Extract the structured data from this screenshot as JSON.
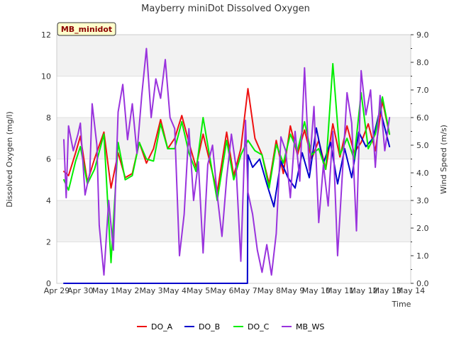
{
  "chart_data": {
    "type": "line",
    "title": "Mayberry miniDot Dissolved Oxygen",
    "xlabel": "Time",
    "ylabel": "Dissolved Oxygen (mg/l)",
    "y2label": "Wind Speed (m/s)",
    "station_badge": "MB_minidot",
    "xlim": [
      0,
      15
    ],
    "ylim": [
      0,
      12
    ],
    "y2lim": [
      0,
      9
    ],
    "x_tick_values": [
      0,
      1,
      2,
      3,
      4,
      5,
      6,
      7,
      8,
      9,
      10,
      11,
      12,
      13,
      14,
      15
    ],
    "x_tick_labels": [
      "Apr 29",
      "Apr 30",
      "May 1",
      "May 2",
      "May 3",
      "May 4",
      "May 5",
      "May 6",
      "May 7",
      "May 8",
      "May 9",
      "May 10",
      "May 11",
      "May 12",
      "May 13",
      "May 14"
    ],
    "y_ticks": [
      "0",
      "2",
      "4",
      "6",
      "8",
      "10",
      "12"
    ],
    "y2_ticks": [
      "0.0",
      "1.0",
      "2.0",
      "3.0",
      "4.0",
      "5.0",
      "6.0",
      "7.0",
      "8.0",
      "9.0"
    ],
    "grid": "horizontal bands",
    "legend_position": "bottom",
    "series": [
      {
        "name": "DO_A",
        "axis": "left",
        "color": "#ee1111",
        "x": [
          0.3,
          0.5,
          0.8,
          1.0,
          1.3,
          1.6,
          2.0,
          2.3,
          2.6,
          2.9,
          3.2,
          3.5,
          3.8,
          4.1,
          4.4,
          4.7,
          5.0,
          5.3,
          5.6,
          5.9,
          6.2,
          6.5,
          6.8,
          7.2,
          7.5,
          7.8,
          8.1,
          8.4,
          8.7,
          9.0,
          9.3,
          9.6,
          9.9,
          10.2,
          10.5,
          10.8,
          11.1,
          11.4,
          11.7,
          12.0,
          12.3,
          12.6,
          12.9,
          13.2,
          13.5,
          13.8,
          14.1
        ],
        "y": [
          5.4,
          5.2,
          6.3,
          7.1,
          4.9,
          6.0,
          7.3,
          4.6,
          6.3,
          5.1,
          5.3,
          6.8,
          5.8,
          6.5,
          7.9,
          6.5,
          7.0,
          8.1,
          6.8,
          5.6,
          7.2,
          5.8,
          4.4,
          7.3,
          5.2,
          6.5,
          9.4,
          7.0,
          6.2,
          4.8,
          6.9,
          5.3,
          7.6,
          6.2,
          7.4,
          6.0,
          6.9,
          5.5,
          7.7,
          6.1,
          7.6,
          6.3,
          6.8,
          7.7,
          6.4,
          8.8,
          7.2
        ]
      },
      {
        "name": "DO_B",
        "axis": "left",
        "color": "#0000cc",
        "x": [
          0.3,
          2.0,
          4.0,
          6.0,
          8.0,
          8.08,
          8.1,
          8.3,
          8.6,
          8.9,
          9.2,
          9.5,
          9.8,
          10.1,
          10.4,
          10.7,
          11.0,
          11.3,
          11.6,
          11.9,
          12.2,
          12.5,
          12.8,
          13.1,
          13.4,
          13.7,
          14.1
        ],
        "y": [
          0,
          0,
          0,
          0,
          0,
          0,
          6.2,
          5.6,
          6.0,
          4.8,
          3.7,
          5.9,
          5.1,
          4.6,
          6.3,
          5.1,
          7.5,
          5.8,
          6.8,
          4.8,
          6.5,
          5.1,
          7.3,
          6.6,
          7.0,
          8.4,
          6.6
        ]
      },
      {
        "name": "DO_C",
        "axis": "left",
        "color": "#00ee00",
        "x": [
          0.3,
          0.5,
          0.8,
          1.0,
          1.3,
          1.6,
          2.0,
          2.3,
          2.6,
          2.9,
          3.2,
          3.5,
          3.8,
          4.1,
          4.4,
          4.7,
          5.0,
          5.3,
          5.6,
          5.9,
          6.2,
          6.5,
          6.8,
          7.2,
          7.5,
          7.8,
          8.1,
          8.4,
          8.7,
          9.0,
          9.3,
          9.6,
          9.9,
          10.2,
          10.5,
          10.8,
          11.1,
          11.4,
          11.7,
          12.0,
          12.3,
          12.6,
          12.9,
          13.2,
          13.5,
          13.8,
          14.1
        ],
        "y": [
          5.0,
          4.5,
          5.9,
          6.6,
          4.8,
          5.5,
          7.2,
          1.0,
          6.8,
          5.0,
          5.2,
          6.8,
          6.0,
          5.9,
          7.7,
          6.5,
          6.5,
          7.8,
          6.3,
          5.4,
          8.0,
          6.0,
          4.0,
          6.9,
          5.0,
          6.2,
          6.9,
          6.4,
          6.2,
          4.6,
          6.7,
          5.8,
          7.2,
          6.4,
          7.8,
          6.2,
          6.5,
          5.5,
          10.6,
          6.2,
          7.0,
          6.0,
          9.2,
          6.5,
          7.2,
          9.0,
          7.2
        ]
      },
      {
        "name": "MB_WS",
        "axis": "right",
        "color": "#9933dd",
        "x": [
          0.3,
          0.4,
          0.5,
          0.7,
          0.9,
          1.0,
          1.2,
          1.4,
          1.5,
          1.7,
          1.8,
          2.0,
          2.2,
          2.4,
          2.6,
          2.8,
          3.0,
          3.2,
          3.4,
          3.6,
          3.8,
          4.0,
          4.2,
          4.4,
          4.6,
          4.8,
          5.0,
          5.2,
          5.4,
          5.6,
          5.8,
          6.0,
          6.2,
          6.4,
          6.6,
          6.8,
          7.0,
          7.2,
          7.4,
          7.6,
          7.8,
          8.0,
          8.1,
          8.3,
          8.5,
          8.7,
          8.9,
          9.1,
          9.3,
          9.5,
          9.7,
          9.9,
          10.1,
          10.3,
          10.5,
          10.7,
          10.9,
          11.1,
          11.3,
          11.5,
          11.7,
          11.9,
          12.1,
          12.3,
          12.5,
          12.7,
          12.9,
          13.1,
          13.3,
          13.5,
          13.7,
          13.9,
          14.1
        ],
        "y": [
          5.2,
          3.1,
          5.7,
          4.8,
          5.4,
          5.8,
          3.2,
          4.0,
          6.5,
          5.0,
          2.1,
          0.3,
          3.0,
          1.2,
          6.2,
          7.2,
          5.2,
          6.5,
          4.7,
          6.8,
          8.5,
          6.0,
          7.4,
          6.7,
          8.1,
          6.0,
          5.6,
          1.0,
          2.5,
          5.6,
          3.0,
          4.4,
          1.1,
          4.3,
          5.0,
          3.2,
          1.7,
          3.8,
          5.4,
          4.2,
          0.8,
          5.9,
          3.3,
          2.5,
          1.2,
          0.4,
          1.4,
          0.3,
          1.8,
          5.3,
          4.8,
          3.1,
          5.5,
          3.7,
          7.8,
          4.1,
          6.4,
          2.2,
          4.3,
          2.8,
          5.5,
          1.0,
          3.9,
          6.9,
          5.8,
          1.9,
          7.7,
          6.1,
          7.0,
          4.2,
          6.8,
          4.8,
          6.0
        ]
      }
    ]
  }
}
